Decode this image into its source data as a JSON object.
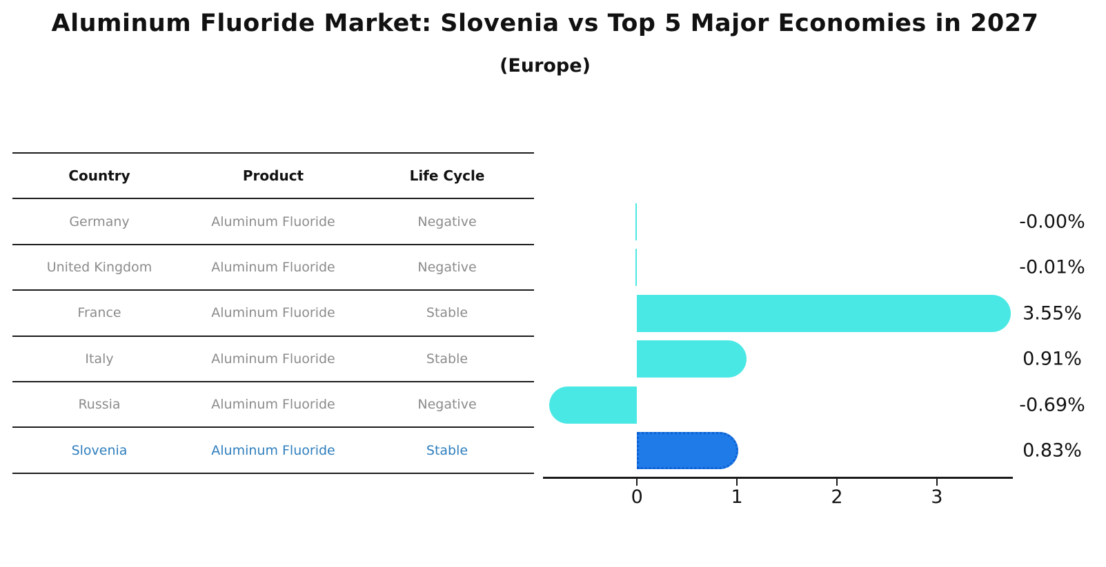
{
  "title": "Aluminum Fluoride Market: Slovenia vs Top 5 Major Economies in 2027",
  "subtitle": "(Europe)",
  "table": {
    "headers": [
      "Country",
      "Product",
      "Life Cycle"
    ],
    "rows": [
      {
        "country": "Germany",
        "product": "Aluminum Fluoride",
        "life_cycle": "Negative"
      },
      {
        "country": "United Kingdom",
        "product": "Aluminum Fluoride",
        "life_cycle": "Negative"
      },
      {
        "country": "France",
        "product": "Aluminum Fluoride",
        "life_cycle": "Stable"
      },
      {
        "country": "Italy",
        "product": "Aluminum Fluoride",
        "life_cycle": "Stable"
      },
      {
        "country": "Russia",
        "product": "Aluminum Fluoride",
        "life_cycle": "Negative"
      },
      {
        "country": "Slovenia",
        "product": "Aluminum Fluoride",
        "life_cycle": "Stable"
      }
    ]
  },
  "chart_data": {
    "type": "bar",
    "orientation": "horizontal",
    "title": "Aluminum Fluoride Market: Slovenia vs Top 5 Major Economies in 2027",
    "subtitle": "(Europe)",
    "categories": [
      "Germany",
      "United Kingdom",
      "France",
      "Italy",
      "Russia",
      "Slovenia"
    ],
    "values": [
      -0.0,
      -0.01,
      3.55,
      0.91,
      -0.69,
      0.83
    ],
    "value_labels": [
      "-0.00%",
      "-0.01%",
      "3.55%",
      "0.91%",
      "-0.69%",
      "0.83%"
    ],
    "highlight_index": 5,
    "xticks": [
      0,
      1,
      2,
      3
    ],
    "xtick_labels": [
      "0",
      "1",
      "2",
      "3"
    ],
    "xlim": [
      -0.94,
      3.76
    ],
    "grid": false,
    "legend": "none",
    "xlabel": "",
    "ylabel": ""
  },
  "colors": {
    "bg": "#ffffff",
    "bar": "#4ae8e4",
    "highlight": "#1e7be8",
    "highlight_border": "#0e5fd1",
    "highlight_text": "#2e7ebd",
    "table_text": "#8b8b8b",
    "header_text": "#111111",
    "label": "#111111",
    "line": "#1a1a1a"
  }
}
